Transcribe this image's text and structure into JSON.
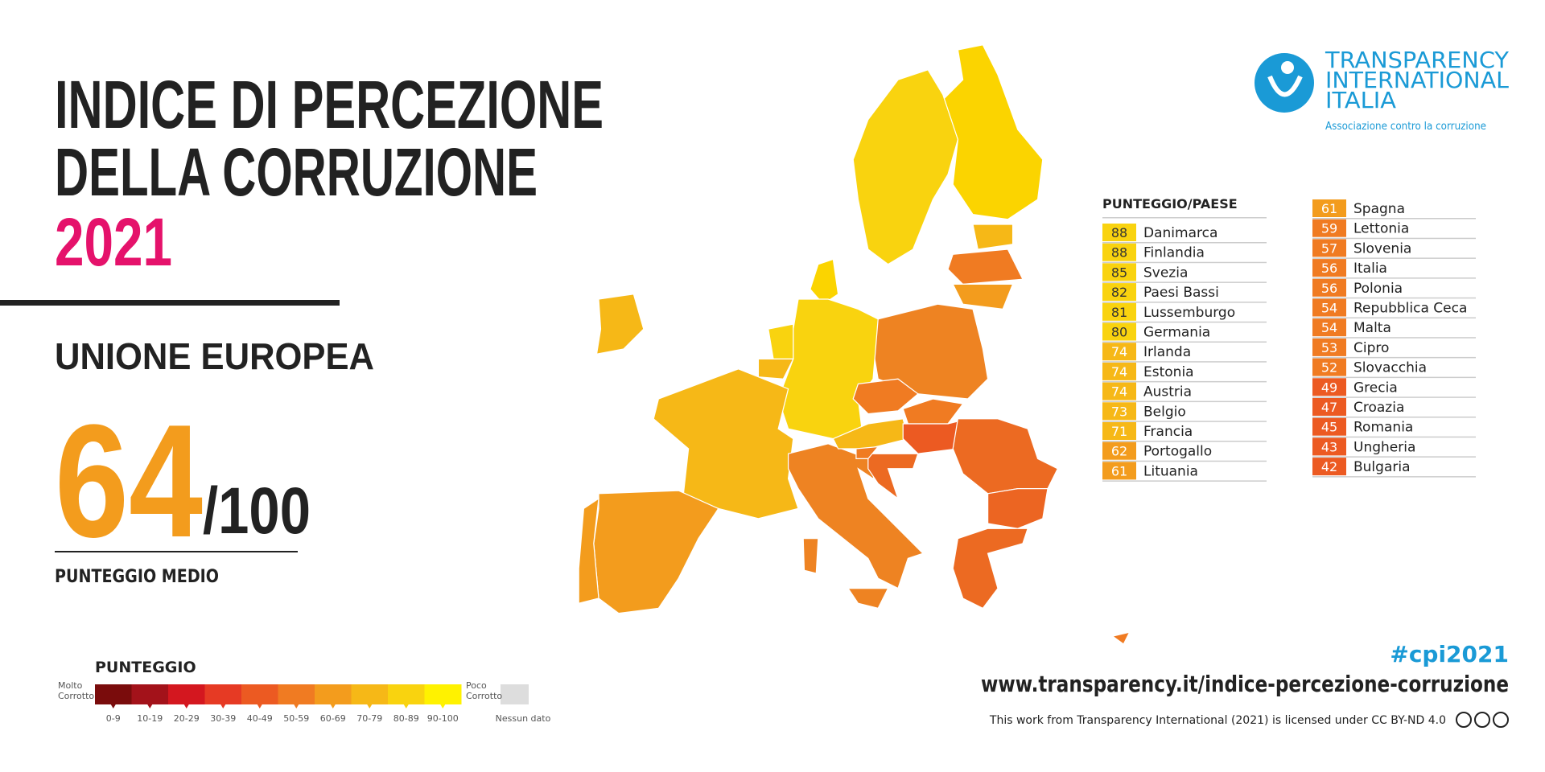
{
  "header": {
    "title_line1": "INDICE DI PERCEZIONE",
    "title_line2": "DELLA CORRUZIONE",
    "year": "2021"
  },
  "summary": {
    "region": "UNIONE EUROPEA",
    "score": 64,
    "max": "/100",
    "label": "PUNTEGGIO MEDIO"
  },
  "logo": {
    "line1": "TRANSPARENCY",
    "line2": "INTERNATIONAL",
    "line3": "ITALIA",
    "tagline": "Associazione contro la corruzione"
  },
  "table": {
    "header": "PUNTEGGIO/PAESE",
    "left": [
      [
        88,
        "Danimarca"
      ],
      [
        88,
        "Finlandia"
      ],
      [
        85,
        "Svezia"
      ],
      [
        82,
        "Paesi Bassi"
      ],
      [
        81,
        "Lussemburgo"
      ],
      [
        80,
        "Germania"
      ],
      [
        74,
        "Irlanda"
      ],
      [
        74,
        "Estonia"
      ],
      [
        74,
        "Austria"
      ],
      [
        73,
        "Belgio"
      ],
      [
        71,
        "Francia"
      ],
      [
        62,
        "Portogallo"
      ],
      [
        61,
        "Lituania"
      ]
    ],
    "right": [
      [
        61,
        "Spagna"
      ],
      [
        59,
        "Lettonia"
      ],
      [
        57,
        "Slovenia"
      ],
      [
        56,
        "Italia"
      ],
      [
        56,
        "Polonia"
      ],
      [
        54,
        "Repubblica Ceca"
      ],
      [
        54,
        "Malta"
      ],
      [
        53,
        "Cipro"
      ],
      [
        52,
        "Slovacchia"
      ],
      [
        49,
        "Grecia"
      ],
      [
        47,
        "Croazia"
      ],
      [
        45,
        "Romania"
      ],
      [
        43,
        "Ungheria"
      ],
      [
        42,
        "Bulgaria"
      ]
    ]
  },
  "legend": {
    "title": "PUNTEGGIO",
    "low": [
      "Molto",
      "Corrotto"
    ],
    "high": [
      "Poco",
      "Corrotto"
    ],
    "bins": [
      "0-9",
      "10-19",
      "20-29",
      "30-39",
      "40-49",
      "50-59",
      "60-69",
      "70-79",
      "80-89",
      "90-100"
    ],
    "colors": [
      "#7a0c0c",
      "#a3121a",
      "#d4171f",
      "#e63a24",
      "#ec5a22",
      "#f07b22",
      "#f39c1d",
      "#f6b817",
      "#f9d30f",
      "#fff200"
    ],
    "no_data": "Nessun dato"
  },
  "footer": {
    "hashtag": "#cpi2021",
    "url": "www.transparency.it/indice-percezione-corruzione",
    "license": "This work from Transparency International (2021) is licensed under CC BY-ND 4.0"
  }
}
